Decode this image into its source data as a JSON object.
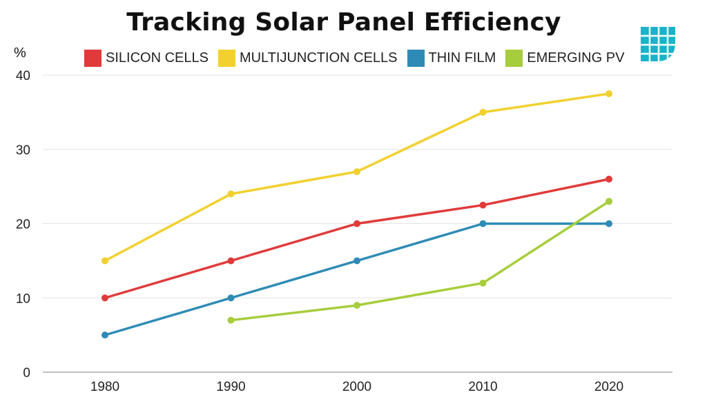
{
  "title": "Tracking Solar Panel Efficiency",
  "unit_label": "%",
  "logo": {
    "icon": "grid-logo-icon",
    "color": "#1ab3c9"
  },
  "chart_data": {
    "type": "line",
    "title": "Tracking Solar Panel Efficiency",
    "xlabel": "",
    "ylabel": "%",
    "x": [
      "1980",
      "1990",
      "2000",
      "2010",
      "2020"
    ],
    "ylim": [
      0,
      40
    ],
    "yticks": [
      "0",
      "10",
      "20",
      "30",
      "40"
    ],
    "grid": true,
    "legend_position": "top",
    "series": [
      {
        "name": "SILICON CELLS",
        "color": "#e03a3a",
        "values": [
          10,
          15,
          20,
          22.5,
          26
        ]
      },
      {
        "name": "MULTIJUNCTION CELLS",
        "color": "#f2d02e",
        "values": [
          15,
          24,
          27,
          35,
          37.5
        ]
      },
      {
        "name": "THIN FILM",
        "color": "#2e8bb5",
        "values": [
          5,
          10,
          15,
          20,
          20
        ]
      },
      {
        "name": "EMERGING PV",
        "color": "#a6cd3c",
        "values": [
          null,
          7,
          9,
          12,
          23
        ]
      }
    ]
  }
}
